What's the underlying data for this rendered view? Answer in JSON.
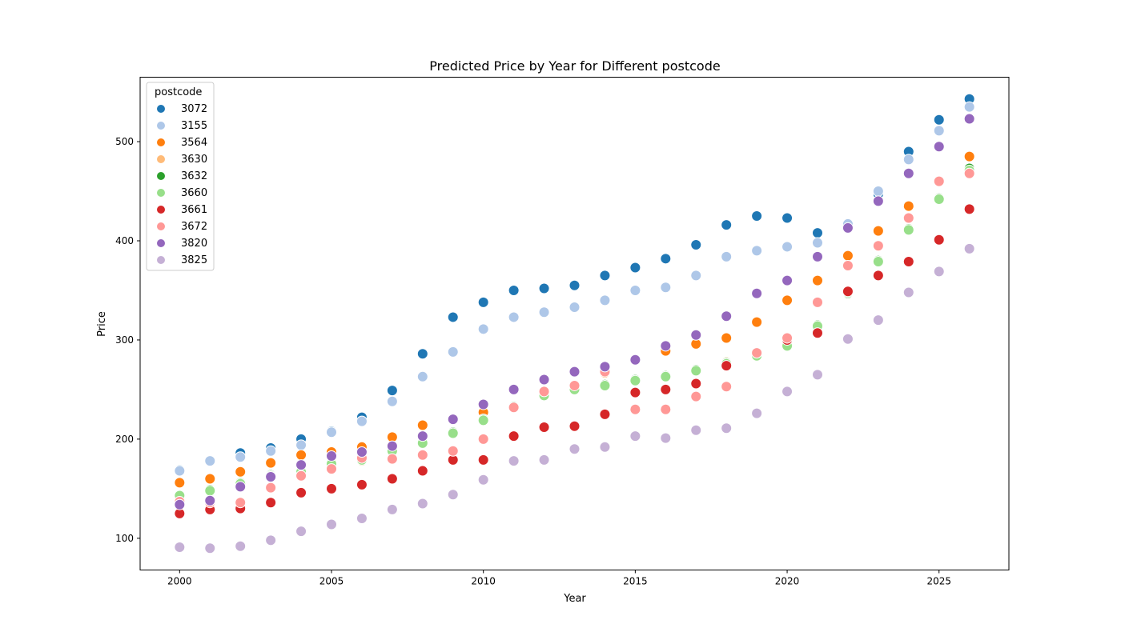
{
  "chart_data": {
    "type": "scatter",
    "title": "Predicted Price by Year for Different postcode",
    "xlabel": "Year",
    "ylabel": "Price",
    "xlim": [
      1998.7,
      2027.3
    ],
    "ylim": [
      68,
      565
    ],
    "xticks": [
      2000,
      2005,
      2010,
      2015,
      2020,
      2025
    ],
    "yticks": [
      100,
      200,
      300,
      400,
      500
    ],
    "grid": false,
    "legend": {
      "title": "postcode",
      "placement": "top-left"
    },
    "x": [
      2000,
      2001,
      2002,
      2003,
      2004,
      2005,
      2006,
      2007,
      2008,
      2009,
      2010,
      2011,
      2012,
      2013,
      2014,
      2015,
      2016,
      2017,
      2018,
      2019,
      2020,
      2021,
      2022,
      2023,
      2024,
      2025,
      2026
    ],
    "series": [
      {
        "name": "3072",
        "color": "#1f77b4",
        "values": [
          169,
          178,
          186,
          191,
          200,
          208,
          222,
          249,
          286,
          323,
          338,
          350,
          352,
          355,
          365,
          373,
          382,
          396,
          416,
          425,
          423,
          408,
          415,
          447,
          490,
          522,
          543
        ]
      },
      {
        "name": "3155",
        "color": "#aec7e8",
        "values": [
          168,
          178,
          182,
          188,
          194,
          207,
          218,
          238,
          263,
          288,
          311,
          323,
          328,
          333,
          340,
          350,
          353,
          365,
          384,
          390,
          394,
          398,
          417,
          450,
          482,
          511,
          535
        ]
      },
      {
        "name": "3564",
        "color": "#ff7f0e",
        "values": [
          156,
          160,
          167,
          176,
          184,
          187,
          192,
          202,
          214,
          220,
          227,
          232,
          247,
          253,
          267,
          280,
          289,
          296,
          302,
          318,
          340,
          360,
          385,
          410,
          435,
          460,
          485
        ]
      },
      {
        "name": "3630",
        "color": "#ffbb78",
        "values": [
          143,
          148,
          154,
          163,
          167,
          174,
          178,
          188,
          196,
          207,
          220,
          232,
          245,
          252,
          255,
          260,
          264,
          270,
          278,
          287,
          297,
          314,
          349,
          380,
          412,
          443,
          472
        ]
      },
      {
        "name": "3632",
        "color": "#2ca02c",
        "values": [
          143,
          149,
          156,
          164,
          168,
          176,
          180,
          189,
          197,
          207,
          220,
          233,
          245,
          250,
          255,
          260,
          264,
          270,
          277,
          285,
          295,
          315,
          347,
          380,
          412,
          443,
          473
        ]
      },
      {
        "name": "3660",
        "color": "#98df8a",
        "values": [
          143,
          148,
          155,
          163,
          167,
          175,
          179,
          188,
          196,
          206,
          219,
          232,
          244,
          250,
          254,
          259,
          263,
          269,
          276,
          284,
          294,
          314,
          348,
          379,
          411,
          442,
          471
        ]
      },
      {
        "name": "3661",
        "color": "#d62728",
        "values": [
          125,
          129,
          130,
          136,
          146,
          150,
          154,
          160,
          168,
          179,
          179,
          203,
          212,
          213,
          225,
          247,
          250,
          256,
          274,
          287,
          300,
          307,
          349,
          365,
          379,
          401,
          432
        ]
      },
      {
        "name": "3672",
        "color": "#ff9896",
        "values": [
          137,
          136,
          136,
          151,
          163,
          170,
          181,
          180,
          184,
          188,
          200,
          232,
          248,
          254,
          268,
          230,
          230,
          243,
          253,
          287,
          302,
          338,
          375,
          395,
          423,
          460,
          468
        ]
      },
      {
        "name": "3820",
        "color": "#9467bd",
        "values": [
          134,
          138,
          152,
          162,
          174,
          183,
          187,
          193,
          203,
          220,
          235,
          250,
          260,
          268,
          273,
          280,
          294,
          305,
          324,
          347,
          360,
          384,
          413,
          440,
          468,
          495,
          523
        ]
      },
      {
        "name": "3825",
        "color": "#c5b0d5",
        "values": [
          91,
          90,
          92,
          98,
          107,
          114,
          120,
          129,
          135,
          144,
          159,
          178,
          179,
          190,
          192,
          203,
          201,
          209,
          211,
          226,
          248,
          265,
          301,
          320,
          348,
          369,
          392
        ]
      }
    ]
  }
}
